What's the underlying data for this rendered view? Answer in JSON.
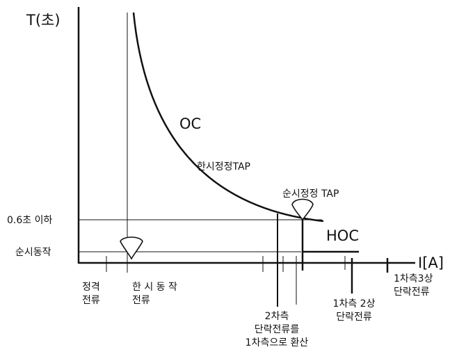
{
  "axes": {
    "y_label": "T(초)",
    "x_label": "I[A]"
  },
  "levels": {
    "upper": "0.6초 이하",
    "lower": "순시동작"
  },
  "curves": {
    "oc_label": "OC",
    "oc_tap_label": "한시정정TAP",
    "hoc_label": "HOC",
    "hoc_tap_label": "순시정정  TAP"
  },
  "x_markers": {
    "rated_line1": "정격",
    "rated_line2": "전류",
    "timed_line1": "한 시 동 작",
    "timed_line2": "전류",
    "converted_line1": "2차측",
    "converted_line2": "단락전류를",
    "converted_line3": "1차측으로  환산",
    "two_phase_line1": "1차측  2상",
    "two_phase_line2": "단락전류",
    "three_phase_line1": "1차측3상",
    "three_phase_line2": "단락전류"
  },
  "colors": {
    "ink": "#111111",
    "background": "#ffffff"
  },
  "icons": {
    "tap_marker": "tap-setting-marker-icon"
  }
}
